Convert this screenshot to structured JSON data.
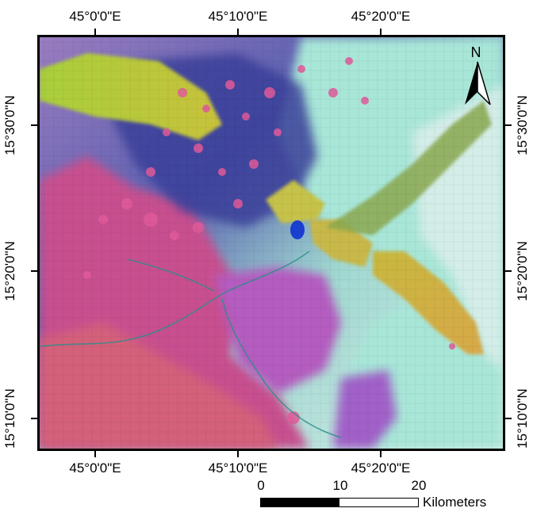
{
  "longitude_labels": [
    "45°0'0\"E",
    "45°10'0\"E",
    "45°20'0\"E"
  ],
  "latitude_labels": [
    "15°30'0\"N",
    "15°20'0\"N",
    "15°10'0\"N"
  ],
  "north_arrow": {
    "label": "N",
    "icon": "north-arrow-icon"
  },
  "scale_bar": {
    "ticks": [
      "0",
      "10",
      "20"
    ],
    "unit": "Kilometers"
  },
  "colors": {
    "frame": "#000000",
    "highland_magenta": "#c8508f",
    "volcanic_blue": "#3a3f9a",
    "ridge_yellow": "#b8c43a",
    "plain_cyan": "#8fe0d0",
    "sand_pale": "#d6ece8",
    "lava_purple": "#7a55b8",
    "water_blue": "#1a40d0"
  }
}
